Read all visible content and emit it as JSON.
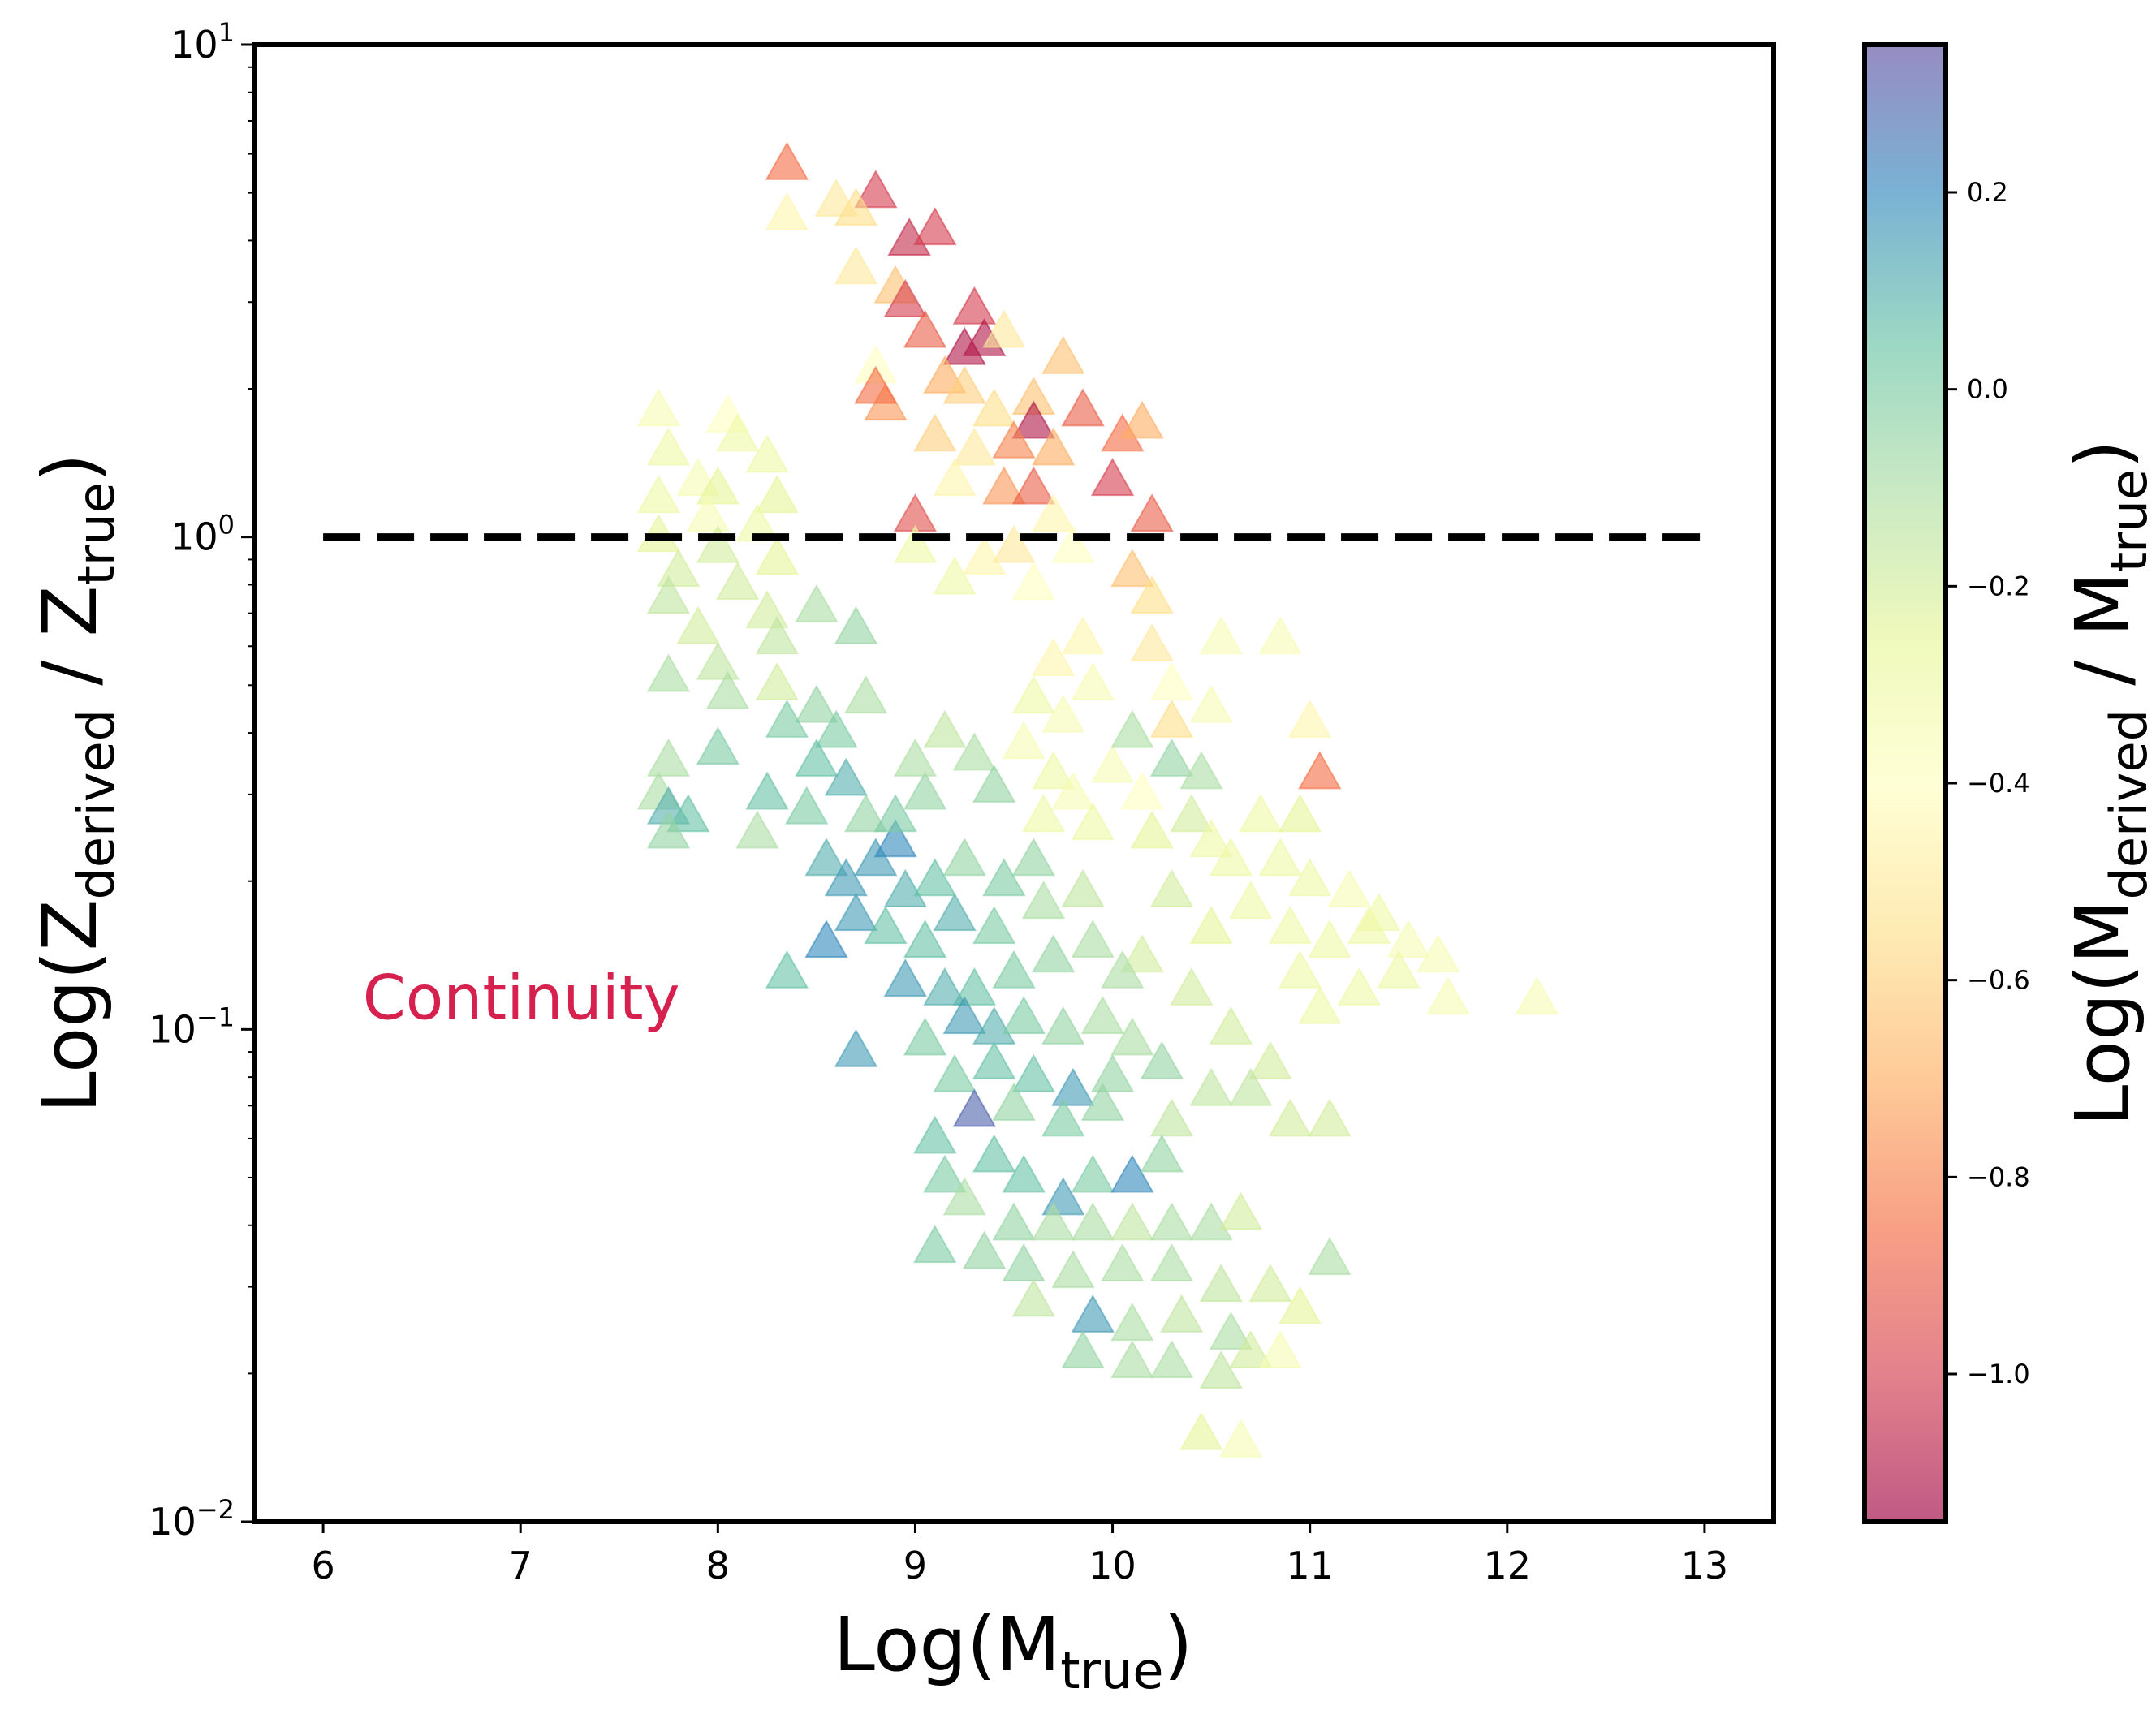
{
  "chart_data": {
    "type": "scatter",
    "marker": "triangle",
    "xlabel": {
      "main": "Log(M",
      "sub": "true",
      "close": ")"
    },
    "ylabel": {
      "main": "Log(Z",
      "sub1": "derived",
      "mid": " / Z",
      "sub2": "true",
      "close": ")"
    },
    "xlim": [
      5.65,
      13.35
    ],
    "ylim": [
      0.01,
      10
    ],
    "yscale": "log",
    "x_ticks": [
      6,
      7,
      8,
      9,
      10,
      11,
      12,
      13
    ],
    "x_tick_labels": [
      "6",
      "7",
      "8",
      "9",
      "10",
      "11",
      "12",
      "13"
    ],
    "y_ticks": [
      {
        "value": 10,
        "base": "10",
        "exp": "1"
      },
      {
        "value": 1,
        "base": "10",
        "exp": "0"
      },
      {
        "value": 0.1,
        "base": "10",
        "exp": "−1"
      },
      {
        "value": 0.01,
        "base": "10",
        "exp": "−2"
      }
    ],
    "grid": false,
    "reference_line": {
      "y": 1.0,
      "x_start": 6,
      "x_end": 13,
      "style": "dashed",
      "color": "#000000"
    },
    "annotation": {
      "text": "Continuity",
      "x": 6.2,
      "y": 0.105,
      "color": "#d6204e"
    },
    "colorbar": {
      "label": {
        "main": "Log(M",
        "sub1": "derived",
        "mid": " / M",
        "sub2": "true",
        "close": ")"
      },
      "range": [
        -1.15,
        0.35
      ],
      "ticks": [
        0.2,
        0.0,
        -0.2,
        -0.4,
        -0.6,
        -0.8,
        -1.0
      ],
      "tick_labels": [
        "0.2",
        "0.0",
        "−0.2",
        "−0.4",
        "−0.6",
        "−0.8",
        "−1.0"
      ],
      "colormap": "Spectral",
      "colors": [
        "#9e0142",
        "#d53e4f",
        "#f46d43",
        "#fdae61",
        "#fee08b",
        "#ffffbf",
        "#e6f598",
        "#abdda4",
        "#66c2a5",
        "#3288bd",
        "#5e4fa2"
      ]
    },
    "points": [
      {
        "x": 8.35,
        "y": 5.7,
        "c": -0.85
      },
      {
        "x": 8.35,
        "y": 4.5,
        "c": -0.45
      },
      {
        "x": 8.6,
        "y": 4.8,
        "c": -0.5
      },
      {
        "x": 8.8,
        "y": 5.0,
        "c": -1.0
      },
      {
        "x": 8.7,
        "y": 4.6,
        "c": -0.55
      },
      {
        "x": 8.97,
        "y": 4.0,
        "c": -1.05
      },
      {
        "x": 9.1,
        "y": 4.2,
        "c": -1.0
      },
      {
        "x": 8.7,
        "y": 3.5,
        "c": -0.5
      },
      {
        "x": 8.9,
        "y": 3.2,
        "c": -0.65
      },
      {
        "x": 8.95,
        "y": 3.0,
        "c": -1.0
      },
      {
        "x": 9.05,
        "y": 2.6,
        "c": -0.9
      },
      {
        "x": 9.3,
        "y": 2.9,
        "c": -1.0
      },
      {
        "x": 9.35,
        "y": 2.5,
        "c": -1.1
      },
      {
        "x": 9.25,
        "y": 2.4,
        "c": -1.1
      },
      {
        "x": 9.45,
        "y": 2.6,
        "c": -0.5
      },
      {
        "x": 8.8,
        "y": 2.2,
        "c": -0.4
      },
      {
        "x": 8.85,
        "y": 1.85,
        "c": -0.75
      },
      {
        "x": 8.8,
        "y": 2.0,
        "c": -0.85
      },
      {
        "x": 9.15,
        "y": 2.1,
        "c": -0.7
      },
      {
        "x": 9.25,
        "y": 2.0,
        "c": -0.6
      },
      {
        "x": 9.4,
        "y": 1.8,
        "c": -0.55
      },
      {
        "x": 9.6,
        "y": 1.9,
        "c": -0.65
      },
      {
        "x": 9.6,
        "y": 1.7,
        "c": -1.1
      },
      {
        "x": 9.75,
        "y": 2.3,
        "c": -0.65
      },
      {
        "x": 9.85,
        "y": 1.8,
        "c": -0.9
      },
      {
        "x": 9.1,
        "y": 1.6,
        "c": -0.6
      },
      {
        "x": 9.3,
        "y": 1.5,
        "c": -0.5
      },
      {
        "x": 9.5,
        "y": 1.55,
        "c": -0.8
      },
      {
        "x": 9.7,
        "y": 1.5,
        "c": -0.7
      },
      {
        "x": 10.05,
        "y": 1.6,
        "c": -0.85
      },
      {
        "x": 10.15,
        "y": 1.7,
        "c": -0.7
      },
      {
        "x": 10.0,
        "y": 1.3,
        "c": -1.0
      },
      {
        "x": 10.2,
        "y": 1.1,
        "c": -0.9
      },
      {
        "x": 9.0,
        "y": 1.1,
        "c": -0.95
      },
      {
        "x": 9.45,
        "y": 1.25,
        "c": -0.75
      },
      {
        "x": 9.6,
        "y": 1.25,
        "c": -0.9
      },
      {
        "x": 9.7,
        "y": 1.1,
        "c": -0.45
      },
      {
        "x": 9.2,
        "y": 1.3,
        "c": -0.45
      },
      {
        "x": 9.0,
        "y": 0.95,
        "c": -0.3
      },
      {
        "x": 9.35,
        "y": 0.9,
        "c": -0.45
      },
      {
        "x": 9.5,
        "y": 0.95,
        "c": -0.5
      },
      {
        "x": 9.8,
        "y": 0.95,
        "c": -0.4
      },
      {
        "x": 10.1,
        "y": 0.85,
        "c": -0.65
      },
      {
        "x": 10.2,
        "y": 0.75,
        "c": -0.55
      },
      {
        "x": 9.2,
        "y": 0.82,
        "c": -0.3
      },
      {
        "x": 9.6,
        "y": 0.8,
        "c": -0.4
      },
      {
        "x": 7.7,
        "y": 1.8,
        "c": -0.35
      },
      {
        "x": 8.05,
        "y": 1.75,
        "c": -0.4
      },
      {
        "x": 8.1,
        "y": 1.6,
        "c": -0.3
      },
      {
        "x": 7.75,
        "y": 1.5,
        "c": -0.3
      },
      {
        "x": 8.25,
        "y": 1.45,
        "c": -0.3
      },
      {
        "x": 7.9,
        "y": 1.3,
        "c": -0.35
      },
      {
        "x": 8.0,
        "y": 1.25,
        "c": -0.25
      },
      {
        "x": 8.3,
        "y": 1.2,
        "c": -0.25
      },
      {
        "x": 7.7,
        "y": 1.2,
        "c": -0.3
      },
      {
        "x": 7.95,
        "y": 1.1,
        "c": -0.35
      },
      {
        "x": 8.2,
        "y": 1.05,
        "c": -0.3
      },
      {
        "x": 7.7,
        "y": 1.0,
        "c": -0.25
      },
      {
        "x": 8.0,
        "y": 0.95,
        "c": -0.2
      },
      {
        "x": 8.3,
        "y": 0.9,
        "c": -0.25
      },
      {
        "x": 7.8,
        "y": 0.85,
        "c": -0.2
      },
      {
        "x": 8.1,
        "y": 0.8,
        "c": -0.2
      },
      {
        "x": 7.75,
        "y": 0.75,
        "c": -0.15
      },
      {
        "x": 8.25,
        "y": 0.7,
        "c": -0.2
      },
      {
        "x": 7.9,
        "y": 0.65,
        "c": -0.2
      },
      {
        "x": 8.3,
        "y": 0.62,
        "c": -0.15
      },
      {
        "x": 8.5,
        "y": 0.72,
        "c": -0.1
      },
      {
        "x": 8.7,
        "y": 0.65,
        "c": -0.05
      },
      {
        "x": 7.75,
        "y": 0.52,
        "c": -0.1
      },
      {
        "x": 8.0,
        "y": 0.55,
        "c": -0.15
      },
      {
        "x": 8.3,
        "y": 0.5,
        "c": -0.2
      },
      {
        "x": 8.05,
        "y": 0.48,
        "c": -0.1
      },
      {
        "x": 7.75,
        "y": 0.35,
        "c": -0.1
      },
      {
        "x": 7.7,
        "y": 0.3,
        "c": -0.1
      },
      {
        "x": 7.75,
        "y": 0.28,
        "c": 0.1
      },
      {
        "x": 7.85,
        "y": 0.27,
        "c": 0.05
      },
      {
        "x": 7.75,
        "y": 0.25,
        "c": -0.05
      },
      {
        "x": 8.0,
        "y": 0.37,
        "c": 0.0
      },
      {
        "x": 8.25,
        "y": 0.3,
        "c": 0.05
      },
      {
        "x": 8.2,
        "y": 0.25,
        "c": -0.1
      },
      {
        "x": 8.5,
        "y": 0.45,
        "c": -0.05
      },
      {
        "x": 8.35,
        "y": 0.42,
        "c": 0.0
      },
      {
        "x": 8.6,
        "y": 0.4,
        "c": 0.0
      },
      {
        "x": 8.75,
        "y": 0.47,
        "c": -0.1
      },
      {
        "x": 8.5,
        "y": 0.35,
        "c": 0.05
      },
      {
        "x": 8.45,
        "y": 0.28,
        "c": 0.0
      },
      {
        "x": 8.65,
        "y": 0.32,
        "c": 0.1
      },
      {
        "x": 8.75,
        "y": 0.27,
        "c": -0.05
      },
      {
        "x": 8.55,
        "y": 0.22,
        "c": 0.1
      },
      {
        "x": 8.65,
        "y": 0.2,
        "c": 0.15
      },
      {
        "x": 8.8,
        "y": 0.22,
        "c": 0.15
      },
      {
        "x": 8.9,
        "y": 0.24,
        "c": 0.2
      },
      {
        "x": 8.95,
        "y": 0.19,
        "c": 0.1
      },
      {
        "x": 8.7,
        "y": 0.17,
        "c": 0.15
      },
      {
        "x": 8.55,
        "y": 0.15,
        "c": 0.2
      },
      {
        "x": 8.35,
        "y": 0.13,
        "c": 0.05
      },
      {
        "x": 8.85,
        "y": 0.16,
        "c": 0.05
      },
      {
        "x": 9.05,
        "y": 0.15,
        "c": 0.05
      },
      {
        "x": 9.2,
        "y": 0.17,
        "c": 0.1
      },
      {
        "x": 9.4,
        "y": 0.16,
        "c": 0.0
      },
      {
        "x": 9.1,
        "y": 0.2,
        "c": 0.05
      },
      {
        "x": 9.25,
        "y": 0.22,
        "c": -0.05
      },
      {
        "x": 8.9,
        "y": 0.27,
        "c": 0.0
      },
      {
        "x": 9.05,
        "y": 0.3,
        "c": -0.05
      },
      {
        "x": 9.0,
        "y": 0.35,
        "c": -0.1
      },
      {
        "x": 9.15,
        "y": 0.4,
        "c": -0.15
      },
      {
        "x": 9.3,
        "y": 0.36,
        "c": -0.1
      },
      {
        "x": 9.4,
        "y": 0.31,
        "c": -0.05
      },
      {
        "x": 9.6,
        "y": 0.47,
        "c": -0.3
      },
      {
        "x": 9.75,
        "y": 0.43,
        "c": -0.35
      },
      {
        "x": 9.9,
        "y": 0.5,
        "c": -0.35
      },
      {
        "x": 9.55,
        "y": 0.38,
        "c": -0.35
      },
      {
        "x": 9.7,
        "y": 0.33,
        "c": -0.3
      },
      {
        "x": 9.8,
        "y": 0.3,
        "c": -0.35
      },
      {
        "x": 9.65,
        "y": 0.27,
        "c": -0.3
      },
      {
        "x": 9.9,
        "y": 0.26,
        "c": -0.3
      },
      {
        "x": 10.0,
        "y": 0.34,
        "c": -0.35
      },
      {
        "x": 10.15,
        "y": 0.3,
        "c": -0.4
      },
      {
        "x": 9.7,
        "y": 0.56,
        "c": -0.45
      },
      {
        "x": 9.85,
        "y": 0.62,
        "c": -0.45
      },
      {
        "x": 10.2,
        "y": 0.6,
        "c": -0.5
      },
      {
        "x": 10.3,
        "y": 0.5,
        "c": -0.4
      },
      {
        "x": 10.3,
        "y": 0.42,
        "c": -0.55
      },
      {
        "x": 10.5,
        "y": 0.45,
        "c": -0.35
      },
      {
        "x": 10.55,
        "y": 0.62,
        "c": -0.35
      },
      {
        "x": 10.85,
        "y": 0.62,
        "c": -0.35
      },
      {
        "x": 11.0,
        "y": 0.42,
        "c": -0.45
      },
      {
        "x": 11.05,
        "y": 0.33,
        "c": -0.85
      },
      {
        "x": 10.1,
        "y": 0.4,
        "c": -0.1
      },
      {
        "x": 10.3,
        "y": 0.35,
        "c": -0.05
      },
      {
        "x": 10.45,
        "y": 0.33,
        "c": -0.1
      },
      {
        "x": 10.4,
        "y": 0.27,
        "c": -0.2
      },
      {
        "x": 10.2,
        "y": 0.25,
        "c": -0.25
      },
      {
        "x": 10.5,
        "y": 0.24,
        "c": -0.3
      },
      {
        "x": 10.75,
        "y": 0.27,
        "c": -0.3
      },
      {
        "x": 10.95,
        "y": 0.27,
        "c": -0.25
      },
      {
        "x": 10.6,
        "y": 0.22,
        "c": -0.3
      },
      {
        "x": 10.85,
        "y": 0.22,
        "c": -0.3
      },
      {
        "x": 11.0,
        "y": 0.2,
        "c": -0.3
      },
      {
        "x": 11.2,
        "y": 0.19,
        "c": -0.35
      },
      {
        "x": 11.35,
        "y": 0.17,
        "c": -0.3
      },
      {
        "x": 11.5,
        "y": 0.15,
        "c": -0.35
      },
      {
        "x": 11.65,
        "y": 0.14,
        "c": -0.35
      },
      {
        "x": 11.3,
        "y": 0.16,
        "c": -0.3
      },
      {
        "x": 11.45,
        "y": 0.13,
        "c": -0.3
      },
      {
        "x": 11.1,
        "y": 0.15,
        "c": -0.3
      },
      {
        "x": 10.9,
        "y": 0.16,
        "c": -0.3
      },
      {
        "x": 10.7,
        "y": 0.18,
        "c": -0.3
      },
      {
        "x": 10.95,
        "y": 0.13,
        "c": -0.3
      },
      {
        "x": 11.05,
        "y": 0.11,
        "c": -0.3
      },
      {
        "x": 11.25,
        "y": 0.12,
        "c": -0.3
      },
      {
        "x": 11.7,
        "y": 0.115,
        "c": -0.35
      },
      {
        "x": 12.15,
        "y": 0.115,
        "c": -0.35
      },
      {
        "x": 10.5,
        "y": 0.16,
        "c": -0.25
      },
      {
        "x": 10.3,
        "y": 0.19,
        "c": -0.2
      },
      {
        "x": 10.15,
        "y": 0.14,
        "c": -0.2
      },
      {
        "x": 10.4,
        "y": 0.12,
        "c": -0.2
      },
      {
        "x": 10.6,
        "y": 0.1,
        "c": -0.2
      },
      {
        "x": 10.8,
        "y": 0.085,
        "c": -0.2
      },
      {
        "x": 9.6,
        "y": 0.22,
        "c": -0.05
      },
      {
        "x": 9.45,
        "y": 0.2,
        "c": 0.0
      },
      {
        "x": 9.65,
        "y": 0.18,
        "c": -0.1
      },
      {
        "x": 9.85,
        "y": 0.19,
        "c": -0.15
      },
      {
        "x": 9.9,
        "y": 0.15,
        "c": -0.1
      },
      {
        "x": 10.05,
        "y": 0.13,
        "c": -0.1
      },
      {
        "x": 9.7,
        "y": 0.14,
        "c": -0.05
      },
      {
        "x": 9.5,
        "y": 0.13,
        "c": 0.0
      },
      {
        "x": 9.3,
        "y": 0.12,
        "c": 0.05
      },
      {
        "x": 9.15,
        "y": 0.12,
        "c": 0.1
      },
      {
        "x": 8.95,
        "y": 0.125,
        "c": 0.15
      },
      {
        "x": 9.25,
        "y": 0.105,
        "c": 0.15
      },
      {
        "x": 9.4,
        "y": 0.1,
        "c": 0.1
      },
      {
        "x": 9.05,
        "y": 0.095,
        "c": 0.0
      },
      {
        "x": 8.7,
        "y": 0.09,
        "c": 0.15
      },
      {
        "x": 9.55,
        "y": 0.105,
        "c": 0.0
      },
      {
        "x": 9.75,
        "y": 0.1,
        "c": -0.05
      },
      {
        "x": 9.95,
        "y": 0.105,
        "c": -0.1
      },
      {
        "x": 10.1,
        "y": 0.095,
        "c": -0.1
      },
      {
        "x": 10.25,
        "y": 0.085,
        "c": -0.05
      },
      {
        "x": 10.0,
        "y": 0.08,
        "c": -0.05
      },
      {
        "x": 9.8,
        "y": 0.075,
        "c": 0.15
      },
      {
        "x": 9.6,
        "y": 0.08,
        "c": 0.05
      },
      {
        "x": 9.4,
        "y": 0.085,
        "c": 0.05
      },
      {
        "x": 9.2,
        "y": 0.08,
        "c": 0.0
      },
      {
        "x": 9.3,
        "y": 0.068,
        "c": 0.3
      },
      {
        "x": 9.5,
        "y": 0.07,
        "c": -0.05
      },
      {
        "x": 9.75,
        "y": 0.065,
        "c": 0.0
      },
      {
        "x": 9.95,
        "y": 0.07,
        "c": -0.05
      },
      {
        "x": 10.3,
        "y": 0.065,
        "c": -0.15
      },
      {
        "x": 10.5,
        "y": 0.075,
        "c": -0.15
      },
      {
        "x": 10.7,
        "y": 0.075,
        "c": -0.15
      },
      {
        "x": 10.9,
        "y": 0.065,
        "c": -0.2
      },
      {
        "x": 11.1,
        "y": 0.065,
        "c": -0.2
      },
      {
        "x": 9.1,
        "y": 0.06,
        "c": 0.05
      },
      {
        "x": 9.15,
        "y": 0.05,
        "c": 0.0
      },
      {
        "x": 9.4,
        "y": 0.055,
        "c": 0.05
      },
      {
        "x": 9.55,
        "y": 0.05,
        "c": 0.05
      },
      {
        "x": 9.75,
        "y": 0.045,
        "c": 0.15
      },
      {
        "x": 9.9,
        "y": 0.05,
        "c": 0.0
      },
      {
        "x": 10.1,
        "y": 0.05,
        "c": 0.2
      },
      {
        "x": 10.25,
        "y": 0.055,
        "c": -0.05
      },
      {
        "x": 9.25,
        "y": 0.045,
        "c": -0.1
      },
      {
        "x": 9.5,
        "y": 0.04,
        "c": -0.05
      },
      {
        "x": 9.7,
        "y": 0.04,
        "c": -0.1
      },
      {
        "x": 9.9,
        "y": 0.04,
        "c": -0.1
      },
      {
        "x": 10.1,
        "y": 0.04,
        "c": -0.15
      },
      {
        "x": 10.3,
        "y": 0.04,
        "c": -0.1
      },
      {
        "x": 10.5,
        "y": 0.04,
        "c": -0.1
      },
      {
        "x": 10.65,
        "y": 0.042,
        "c": -0.2
      },
      {
        "x": 9.1,
        "y": 0.036,
        "c": 0.0
      },
      {
        "x": 9.35,
        "y": 0.035,
        "c": -0.05
      },
      {
        "x": 9.55,
        "y": 0.033,
        "c": -0.05
      },
      {
        "x": 9.8,
        "y": 0.032,
        "c": -0.1
      },
      {
        "x": 10.05,
        "y": 0.033,
        "c": -0.1
      },
      {
        "x": 10.3,
        "y": 0.033,
        "c": -0.1
      },
      {
        "x": 10.55,
        "y": 0.03,
        "c": -0.15
      },
      {
        "x": 10.8,
        "y": 0.03,
        "c": -0.2
      },
      {
        "x": 11.1,
        "y": 0.034,
        "c": -0.1
      },
      {
        "x": 9.6,
        "y": 0.028,
        "c": -0.15
      },
      {
        "x": 9.9,
        "y": 0.026,
        "c": 0.15
      },
      {
        "x": 10.1,
        "y": 0.025,
        "c": -0.1
      },
      {
        "x": 10.35,
        "y": 0.026,
        "c": -0.15
      },
      {
        "x": 10.6,
        "y": 0.024,
        "c": -0.1
      },
      {
        "x": 10.7,
        "y": 0.022,
        "c": -0.2
      },
      {
        "x": 10.95,
        "y": 0.027,
        "c": -0.25
      },
      {
        "x": 10.3,
        "y": 0.021,
        "c": -0.1
      },
      {
        "x": 10.55,
        "y": 0.02,
        "c": -0.15
      },
      {
        "x": 10.45,
        "y": 0.015,
        "c": -0.25
      },
      {
        "x": 10.65,
        "y": 0.0145,
        "c": -0.35
      },
      {
        "x": 10.85,
        "y": 0.022,
        "c": -0.35
      },
      {
        "x": 10.1,
        "y": 0.021,
        "c": -0.1
      },
      {
        "x": 9.85,
        "y": 0.022,
        "c": -0.05
      }
    ]
  }
}
